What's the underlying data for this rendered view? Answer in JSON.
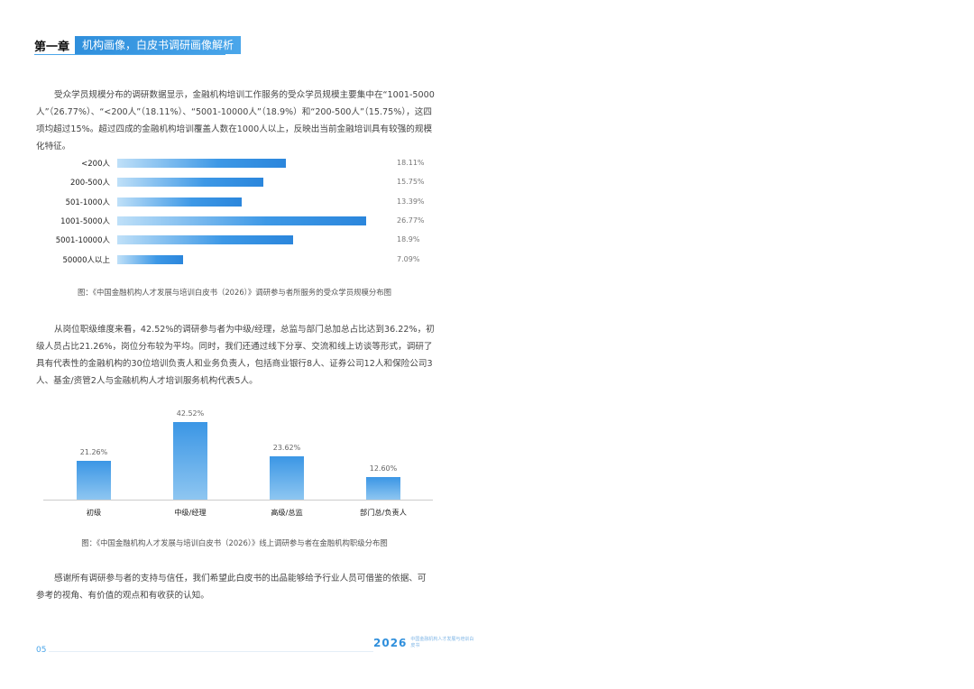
{
  "header": {
    "chapter": "第一章",
    "tag": "机构画像，白皮书调研画像解析"
  },
  "paragraphs": {
    "p1": "受众学员规模分布的调研数据显示，金融机构培训工作服务的受众学员规模主要集中在“1001-5000人”（26.77%）、“<200人”（18.11%）、“5001-10000人”（18.9%）和“200-500人”（15.75%），这四项均超过15%。超过四成的金融机构培训覆盖人数在1000人以上，反映出当前金融培训具有较强的规模化特征。",
    "p2": "从岗位职级维度来看，42.52%的调研参与者为中级/经理，总监与部门总加总占比达到36.22%，初级人员占比21.26%，岗位分布较为平均。同时，我们还通过线下分享、交流和线上访谈等形式，调研了具有代表性的金融机构的30位培训负责人和业务负责人，包括商业银行8人、证券公司12人和保险公司3人、基金/资管2人与金融机构人才培训服务机构代表5人。",
    "p3": "感谢所有调研参与者的支持与信任，我们希望此白皮书的出品能够给予行业人员可借鉴的依据、可参考的视角、有价值的观点和有收获的认知。"
  },
  "captions": {
    "chart1": "图：《中国金融机构人才发展与培训白皮书（2026）》调研参与者所服务的受众学员规模分布图",
    "chart2": "图：《中国金融机构人才发展与培训白皮书（2026）》线上调研参与者在金融机构职级分布图"
  },
  "chart_data": [
    {
      "type": "bar",
      "orientation": "horizontal",
      "categories": [
        "<200人",
        "200-500人",
        "501-1000人",
        "1001-5000人",
        "5001-10000人",
        "50000人以上"
      ],
      "values": [
        18.11,
        15.75,
        13.39,
        26.77,
        18.9,
        7.09
      ],
      "value_labels": [
        "18.11%",
        "15.75%",
        "13.39%",
        "26.77%",
        "18.9%",
        "7.09%"
      ],
      "xlim": [
        0,
        26.77
      ],
      "grid": false
    },
    {
      "type": "bar",
      "orientation": "vertical",
      "categories": [
        "初级",
        "中级/经理",
        "高级/总监",
        "部门总/负责人"
      ],
      "values": [
        21.26,
        42.52,
        23.62,
        12.6
      ],
      "value_labels": [
        "21.26%",
        "42.52%",
        "23.62%",
        "12.60%"
      ],
      "ylim": [
        0,
        42.52
      ],
      "grid": false
    }
  ],
  "footer": {
    "page": "05",
    "year": "2026",
    "small_text": "中国金融机构人才发展与培训白皮书"
  }
}
